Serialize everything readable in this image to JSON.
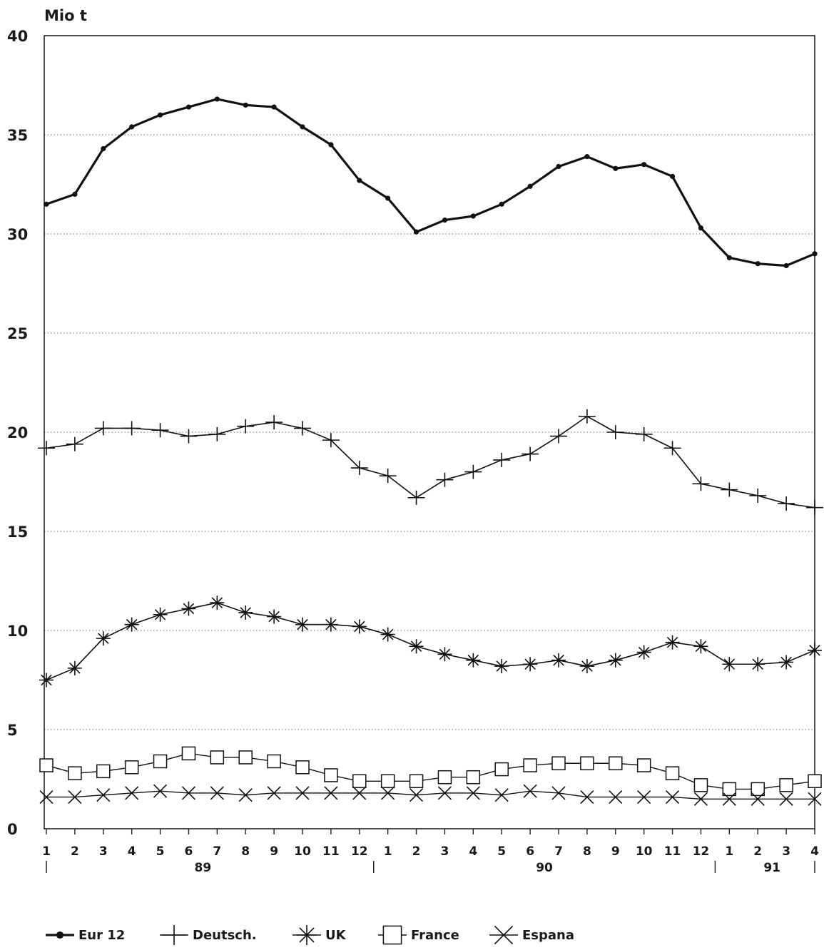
{
  "chart_data": {
    "type": "line",
    "ylabel": "Mio t",
    "ylim": [
      0,
      40
    ],
    "yticks": [
      0,
      5,
      10,
      15,
      20,
      25,
      30,
      35,
      40
    ],
    "grid": true,
    "legend_position": "bottom",
    "x_tick_labels": [
      "1",
      "2",
      "3",
      "4",
      "5",
      "6",
      "7",
      "8",
      "9",
      "10",
      "11",
      "12",
      "1",
      "2",
      "3",
      "4",
      "5",
      "6",
      "7",
      "8",
      "9",
      "10",
      "11",
      "12",
      "1",
      "2",
      "3",
      "4"
    ],
    "year_labels": [
      {
        "label": "89",
        "month_index": 5.5
      },
      {
        "label": "90",
        "month_index": 17.5
      },
      {
        "label": "91",
        "month_index": 25.5
      }
    ],
    "series": [
      {
        "name": "Eur 12",
        "marker": "dot",
        "line_width": 3.2,
        "values": [
          31.5,
          32.0,
          34.3,
          35.4,
          36.0,
          36.4,
          36.8,
          36.5,
          36.4,
          35.4,
          34.5,
          32.7,
          31.8,
          30.1,
          30.7,
          30.9,
          31.5,
          32.4,
          33.4,
          33.9,
          33.3,
          33.5,
          32.9,
          30.3,
          28.8,
          28.5,
          28.4,
          29.0
        ]
      },
      {
        "name": "Deutsch.",
        "marker": "plus",
        "line_width": 1.6,
        "values": [
          19.2,
          19.4,
          20.2,
          20.2,
          20.1,
          19.8,
          19.9,
          20.3,
          20.5,
          20.2,
          19.6,
          18.2,
          17.8,
          16.7,
          17.6,
          18.0,
          18.6,
          18.9,
          19.8,
          20.8,
          20.0,
          19.9,
          19.2,
          17.4,
          17.1,
          16.8,
          16.4,
          16.2
        ]
      },
      {
        "name": "UK",
        "marker": "star",
        "line_width": 1.6,
        "values": [
          7.5,
          8.1,
          9.6,
          10.3,
          10.8,
          11.1,
          11.4,
          10.9,
          10.7,
          10.3,
          10.3,
          10.2,
          9.8,
          9.2,
          8.8,
          8.5,
          8.2,
          8.3,
          8.5,
          8.2,
          8.5,
          8.9,
          9.4,
          9.2,
          8.3,
          8.3,
          8.4,
          9.0
        ]
      },
      {
        "name": "France",
        "marker": "square",
        "line_width": 1.4,
        "values": [
          3.2,
          2.8,
          2.9,
          3.1,
          3.4,
          3.8,
          3.6,
          3.6,
          3.4,
          3.1,
          2.7,
          2.4,
          2.4,
          2.4,
          2.6,
          2.6,
          3.0,
          3.2,
          3.3,
          3.3,
          3.3,
          3.2,
          2.8,
          2.2,
          2.0,
          2.0,
          2.2,
          2.4
        ]
      },
      {
        "name": "Espana",
        "marker": "x",
        "line_width": 1.4,
        "values": [
          1.6,
          1.6,
          1.7,
          1.8,
          1.9,
          1.8,
          1.8,
          1.7,
          1.8,
          1.8,
          1.8,
          1.8,
          1.8,
          1.7,
          1.8,
          1.8,
          1.7,
          1.9,
          1.8,
          1.6,
          1.6,
          1.6,
          1.6,
          1.5,
          1.5,
          1.5,
          1.5,
          1.5
        ]
      }
    ]
  }
}
